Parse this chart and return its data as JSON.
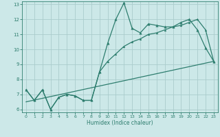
{
  "xlabel": "Humidex (Indice chaleur)",
  "bg_color": "#cce8e8",
  "line_color": "#2d7d6e",
  "grid_color": "#aacccc",
  "xlim": [
    -0.5,
    23.5
  ],
  "ylim": [
    5.8,
    13.2
  ],
  "yticks": [
    6,
    7,
    8,
    9,
    10,
    11,
    12,
    13
  ],
  "xticks": [
    0,
    1,
    2,
    3,
    4,
    5,
    6,
    7,
    8,
    9,
    10,
    11,
    12,
    13,
    14,
    15,
    16,
    17,
    18,
    19,
    20,
    21,
    22,
    23
  ],
  "line1_x": [
    0,
    1,
    2,
    3,
    4,
    5,
    6,
    7,
    8,
    9,
    10,
    11,
    12,
    13,
    14,
    15,
    16,
    17,
    18,
    19,
    20,
    21,
    22,
    23
  ],
  "line1_y": [
    7.3,
    6.6,
    7.3,
    6.0,
    6.8,
    7.0,
    6.9,
    6.6,
    6.6,
    8.5,
    10.4,
    12.0,
    13.1,
    11.4,
    11.1,
    11.7,
    11.6,
    11.5,
    11.5,
    11.8,
    12.0,
    11.3,
    10.1,
    9.2
  ],
  "line2_x": [
    0,
    1,
    2,
    3,
    4,
    5,
    6,
    7,
    8,
    9,
    10,
    11,
    12,
    13,
    14,
    15,
    16,
    17,
    18,
    19,
    20,
    21,
    22,
    23
  ],
  "line2_y": [
    7.3,
    6.6,
    7.3,
    6.0,
    6.8,
    7.0,
    6.9,
    6.6,
    6.6,
    8.5,
    9.2,
    9.7,
    10.2,
    10.5,
    10.7,
    11.0,
    11.1,
    11.3,
    11.5,
    11.6,
    11.8,
    12.0,
    11.3,
    9.2
  ],
  "line3_x": [
    0,
    23
  ],
  "line3_y": [
    6.5,
    9.2
  ]
}
